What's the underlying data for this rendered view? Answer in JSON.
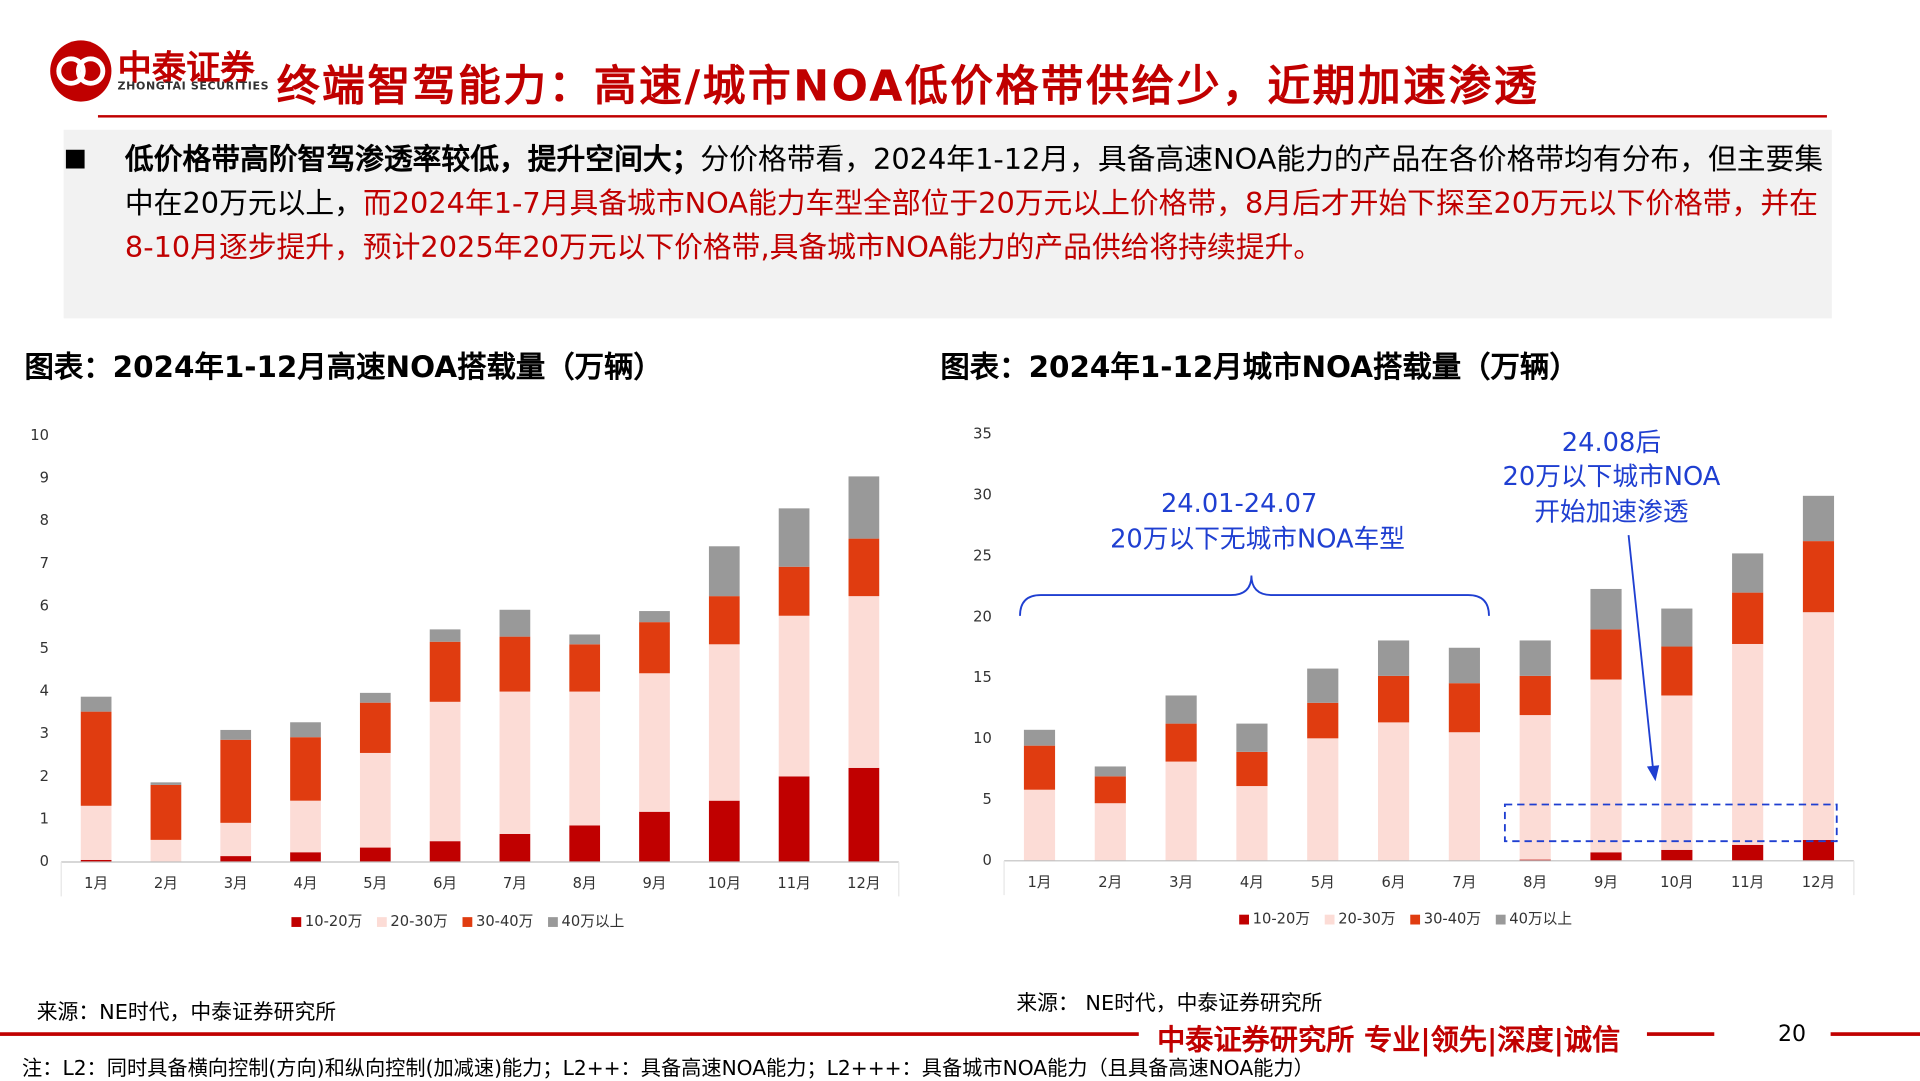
{
  "header": {
    "logo": "中泰证券",
    "logo_sub": "ZHONGTAI SECURITIES",
    "title": "终端智驾能力：高速/城市NOA低价格带供给少，近期加速渗透"
  },
  "bullet": {
    "lead": "低价格带高阶智驾渗透率较低，提升空间大；",
    "text": "分价格带看，2024年1-12月，具备高速NOA能力的产品在各价格带均有分布，但主要集中在20万元以上，",
    "highlight": "而2024年1-7月具备城市NOA能力车型全部位于20万元以上价格带，8月后才开始下探至20万元以下价格带，并在8-10月逐步提升，预计2025年20万元以下价格带,具备城市NOA能力的产品供给将持续提升。"
  },
  "chart_data": [
    {
      "type": "bar",
      "stacked": true,
      "title": "图表：2024年1-12月高速NOA搭载量（万辆）",
      "categories": [
        "1月",
        "2月",
        "3月",
        "4月",
        "5月",
        "6月",
        "7月",
        "8月",
        "9月",
        "10月",
        "11月",
        "12月"
      ],
      "series": [
        {
          "name": "10-20万",
          "color": "#c00000",
          "values": [
            0.05,
            0,
            0.14,
            0.23,
            0.34,
            0.49,
            0.66,
            0.86,
            1.18,
            1.44,
            2.01,
            2.21
          ]
        },
        {
          "name": "20-30万",
          "color": "#fcdcd6",
          "values": [
            1.27,
            0.52,
            0.78,
            1.21,
            2.22,
            3.27,
            3.34,
            3.14,
            3.25,
            3.67,
            3.77,
            4.03
          ]
        },
        {
          "name": "30-40万",
          "color": "#e03c10",
          "values": [
            2.21,
            1.29,
            1.95,
            1.49,
            1.18,
            1.41,
            1.29,
            1.11,
            1.2,
            1.13,
            1.15,
            1.35
          ]
        },
        {
          "name": "40万以上",
          "color": "#999999",
          "values": [
            0.35,
            0.06,
            0.23,
            0.35,
            0.23,
            0.29,
            0.63,
            0.23,
            0.26,
            1.17,
            1.37,
            1.46
          ]
        }
      ],
      "ylim": [
        0,
        10
      ],
      "yticks": [
        0,
        1,
        2,
        3,
        4,
        5,
        6,
        7,
        8,
        9,
        10
      ],
      "grid": false,
      "source": "来源：NE时代，中泰证券研究所"
    },
    {
      "type": "bar",
      "stacked": true,
      "title": "图表：2024年1-12月城市NOA搭载量（万辆）",
      "categories": [
        "1月",
        "2月",
        "3月",
        "4月",
        "5月",
        "6月",
        "7月",
        "8月",
        "9月",
        "10月",
        "11月",
        "12月"
      ],
      "series": [
        {
          "name": "10-20万",
          "color": "#c00000",
          "values": [
            0,
            0,
            0,
            0,
            0,
            0,
            0,
            0.1,
            0.7,
            0.9,
            1.31,
            1.71
          ]
        },
        {
          "name": "20-30万",
          "color": "#fcdcd6",
          "values": [
            5.84,
            4.73,
            8.15,
            6.14,
            10.06,
            11.37,
            10.56,
            11.87,
            14.19,
            12.68,
            16.5,
            18.71
          ]
        },
        {
          "name": "30-40万",
          "color": "#e03c10",
          "values": [
            3.62,
            2.21,
            3.12,
            2.81,
            2.92,
            3.82,
            4.03,
            3.22,
            4.12,
            4.02,
            4.22,
            5.84
          ]
        },
        {
          "name": "40万以上",
          "color": "#999999",
          "values": [
            1.3,
            0.81,
            2.31,
            2.32,
            2.81,
            2.91,
            2.91,
            2.91,
            3.32,
            3.12,
            3.22,
            3.72
          ]
        }
      ],
      "ylim": [
        0,
        35
      ],
      "yticks": [
        0,
        5,
        10,
        15,
        20,
        25,
        30,
        35
      ],
      "grid": false,
      "annotations": [
        "24.01-24.07",
        "20万以下无城市NOA车型",
        "24.08后",
        "20万以下城市NOA",
        "开始加速渗透"
      ],
      "source": "来源： NE时代，中泰证券研究所"
    }
  ],
  "footer": {
    "slogan": "中泰证券研究所 专业|领先|深度|诚信",
    "page": "20",
    "note": "注：L2：同时具备横向控制(方向)和纵向控制(加减速)能力；L2++：具备高速NOA能力；L2+++：具备城市NOA能力（且具备高速NOA能力）"
  }
}
